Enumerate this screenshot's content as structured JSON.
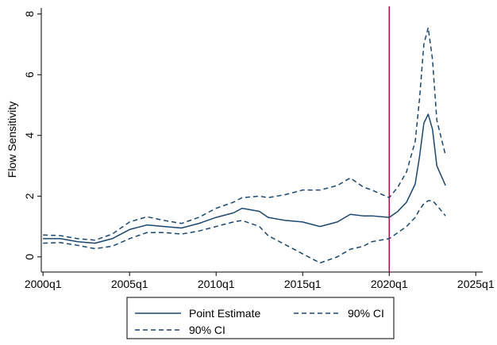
{
  "chart_data": {
    "type": "line",
    "ylabel": "Flow Sensitivity",
    "x": [
      2000,
      2001,
      2002,
      2003,
      2004,
      2005,
      2006,
      2007,
      2008,
      2009,
      2010,
      2011,
      2011.5,
      2012.5,
      2013,
      2014,
      2015,
      2016,
      2017,
      2017.75,
      2018.5,
      2019,
      2020,
      2020.5,
      2021,
      2021.5,
      2021.75,
      2022,
      2022.25,
      2022.5,
      2022.75,
      2023.25
    ],
    "series": [
      {
        "name": "Point Estimate",
        "color": "#1a476f",
        "dashed": false,
        "values": [
          0.6,
          0.6,
          0.5,
          0.45,
          0.6,
          0.9,
          1.05,
          1.0,
          0.95,
          1.1,
          1.3,
          1.45,
          1.6,
          1.5,
          1.3,
          1.2,
          1.15,
          1.0,
          1.15,
          1.4,
          1.35,
          1.35,
          1.3,
          1.5,
          1.8,
          2.4,
          3.3,
          4.4,
          4.7,
          4.2,
          3.0,
          2.35
        ]
      },
      {
        "name": "90% CI",
        "color": "#1a476f",
        "dashed": true,
        "values": [
          0.72,
          0.7,
          0.6,
          0.55,
          0.75,
          1.15,
          1.32,
          1.2,
          1.1,
          1.3,
          1.6,
          1.8,
          1.95,
          2.0,
          1.95,
          2.05,
          2.2,
          2.2,
          2.35,
          2.6,
          2.3,
          2.2,
          1.95,
          2.3,
          2.8,
          3.8,
          5.2,
          7.0,
          7.55,
          6.5,
          4.5,
          3.35
        ]
      },
      {
        "name": "90% CI",
        "color": "#1a476f",
        "dashed": true,
        "values": [
          0.45,
          0.47,
          0.38,
          0.27,
          0.35,
          0.6,
          0.8,
          0.8,
          0.75,
          0.85,
          1.0,
          1.15,
          1.2,
          1.0,
          0.7,
          0.4,
          0.1,
          -0.2,
          0.0,
          0.25,
          0.35,
          0.5,
          0.6,
          0.8,
          1.0,
          1.3,
          1.55,
          1.75,
          1.85,
          1.85,
          1.7,
          1.35
        ]
      }
    ],
    "vline": {
      "value": 2020,
      "color": "#a0174f"
    },
    "xlim": [
      1999.9,
      2025.4
    ],
    "xticks": [
      {
        "value": 2000,
        "label": "2000q1"
      },
      {
        "value": 2005,
        "label": "2005q1"
      },
      {
        "value": 2010,
        "label": "2010q1"
      },
      {
        "value": 2015,
        "label": "2015q1"
      },
      {
        "value": 2020,
        "label": "2020q1"
      },
      {
        "value": 2025,
        "label": "2025q1"
      }
    ],
    "ylim": [
      -0.5,
      8.2
    ],
    "yticks": [
      0,
      2,
      4,
      6,
      8
    ],
    "grid": false
  }
}
